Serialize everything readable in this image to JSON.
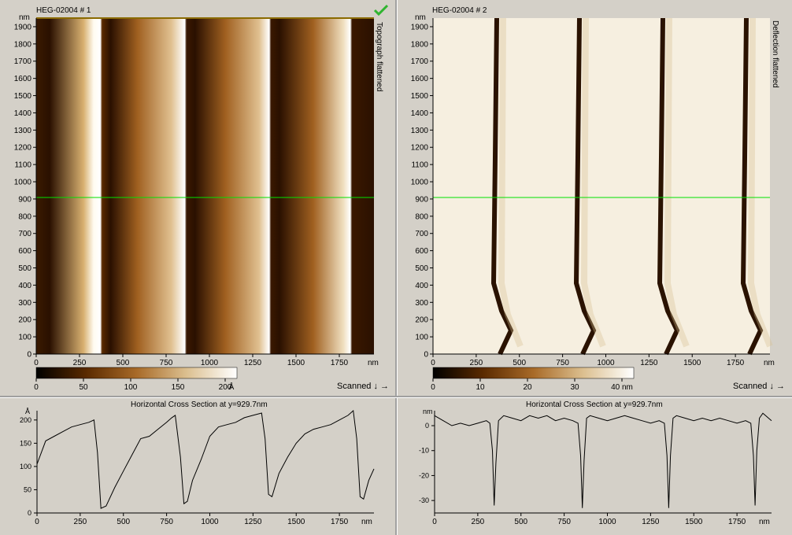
{
  "left": {
    "title": "HEG-02004 # 1",
    "vertical_label": "Topograph flattened",
    "scanned_label": "Scanned ↓ →",
    "unit": "nm",
    "y_ticks": [
      "1900",
      "1800",
      "1700",
      "1600",
      "1500",
      "1400",
      "1300",
      "1200",
      "1100",
      "1000",
      "900",
      "800",
      "700",
      "600",
      "500",
      "400",
      "300",
      "200",
      "100",
      "0"
    ],
    "x_ticks": [
      "0",
      "250",
      "500",
      "750",
      "1000",
      "1250",
      "1500",
      "1750"
    ],
    "colorbar_ticks": [
      "0",
      "50",
      "100",
      "150",
      "200"
    ],
    "colorbar_unit": "Å",
    "check_color": "#2fb52f"
  },
  "right": {
    "title": "HEG-02004 # 2",
    "vertical_label": "Deflection flattened",
    "scanned_label": "Scanned ↓ →",
    "unit": "nm",
    "y_ticks": [
      "1900",
      "1800",
      "1700",
      "1600",
      "1500",
      "1400",
      "1300",
      "1200",
      "1100",
      "1000",
      "900",
      "800",
      "700",
      "600",
      "500",
      "400",
      "300",
      "200",
      "100",
      "0"
    ],
    "x_ticks": [
      "0",
      "250",
      "500",
      "750",
      "1000",
      "1250",
      "1500",
      "1750"
    ],
    "colorbar_ticks": [
      "0",
      "10",
      "20",
      "30",
      "40 nm"
    ]
  },
  "cross_left": {
    "title": "Horizontal Cross Section at y=929.7nm",
    "y_unit": "Å",
    "x_unit": "nm",
    "y_ticks": [
      "200",
      "150",
      "100",
      "50",
      "0"
    ],
    "x_ticks": [
      "0",
      "250",
      "500",
      "750",
      "1000",
      "1250",
      "1500",
      "1750"
    ]
  },
  "cross_right": {
    "title": "Horizontal Cross Section at y=929.7nm",
    "y_unit": "nm",
    "x_unit": "nm",
    "y_ticks": [
      "0",
      "-10",
      "-20",
      "-30"
    ],
    "x_ticks": [
      "0",
      "250",
      "500",
      "750",
      "1000",
      "1250",
      "1500",
      "1750"
    ]
  },
  "chart_data": [
    {
      "type": "line",
      "title": "Horizontal Cross Section at y=929.7nm",
      "xlabel": "nm",
      "ylabel": "Å",
      "xlim": [
        0,
        1950
      ],
      "ylim": [
        0,
        220
      ],
      "x": [
        0,
        50,
        100,
        150,
        200,
        250,
        300,
        330,
        350,
        370,
        400,
        450,
        500,
        550,
        600,
        650,
        700,
        750,
        780,
        800,
        830,
        850,
        870,
        900,
        950,
        1000,
        1050,
        1100,
        1150,
        1200,
        1250,
        1300,
        1320,
        1340,
        1360,
        1380,
        1400,
        1450,
        1500,
        1550,
        1600,
        1650,
        1700,
        1750,
        1800,
        1830,
        1850,
        1870,
        1890,
        1920,
        1950
      ],
      "y": [
        105,
        155,
        165,
        175,
        185,
        190,
        195,
        200,
        130,
        10,
        15,
        55,
        90,
        125,
        160,
        165,
        180,
        195,
        205,
        210,
        120,
        20,
        25,
        70,
        115,
        165,
        185,
        190,
        195,
        205,
        210,
        215,
        160,
        40,
        35,
        60,
        85,
        120,
        150,
        170,
        180,
        185,
        190,
        200,
        210,
        220,
        160,
        35,
        30,
        70,
        95
      ]
    },
    {
      "type": "line",
      "title": "Horizontal Cross Section at y=929.7nm",
      "xlabel": "nm",
      "ylabel": "nm",
      "xlim": [
        0,
        1950
      ],
      "ylim": [
        -35,
        6
      ],
      "x": [
        0,
        50,
        100,
        150,
        200,
        250,
        300,
        320,
        335,
        345,
        355,
        370,
        400,
        450,
        500,
        550,
        600,
        650,
        700,
        750,
        800,
        830,
        845,
        855,
        865,
        880,
        900,
        950,
        1000,
        1050,
        1100,
        1150,
        1200,
        1250,
        1300,
        1330,
        1345,
        1355,
        1365,
        1380,
        1400,
        1450,
        1500,
        1550,
        1600,
        1650,
        1700,
        1750,
        1800,
        1830,
        1845,
        1855,
        1865,
        1880,
        1900,
        1950
      ],
      "y": [
        4,
        2,
        0,
        1,
        0,
        1,
        2,
        1,
        -10,
        -32,
        -15,
        2,
        4,
        3,
        2,
        4,
        3,
        4,
        2,
        3,
        2,
        1,
        -12,
        -33,
        -14,
        3,
        4,
        3,
        2,
        3,
        4,
        3,
        2,
        1,
        2,
        1,
        -12,
        -33,
        -12,
        3,
        4,
        3,
        2,
        3,
        2,
        3,
        2,
        1,
        2,
        1,
        -12,
        -32,
        -10,
        3,
        5,
        2
      ]
    }
  ]
}
